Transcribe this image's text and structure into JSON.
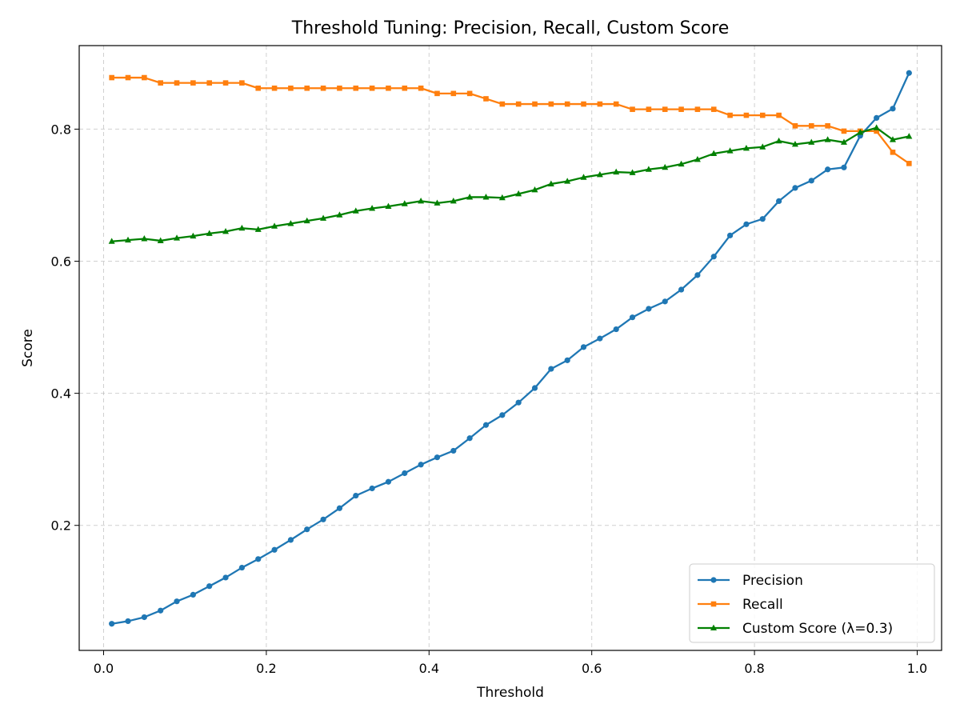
{
  "chart_data": {
    "type": "line",
    "title": "Threshold Tuning: Precision, Recall, Custom Score",
    "xlabel": "Threshold",
    "ylabel": "Score",
    "xlim": [
      -0.03,
      1.03
    ],
    "ylim": [
      0.0107,
      0.9265
    ],
    "xticks": [
      0.0,
      0.2,
      0.4,
      0.6,
      0.8,
      1.0
    ],
    "xtick_labels": [
      "0.0",
      "0.2",
      "0.4",
      "0.6",
      "0.8",
      "1.0"
    ],
    "yticks": [
      0.2,
      0.4,
      0.6,
      0.8
    ],
    "ytick_labels": [
      "0.2",
      "0.4",
      "0.6",
      "0.8"
    ],
    "grid": true,
    "legend_position": "bottom-right",
    "x": [
      0.01,
      0.03,
      0.05,
      0.07,
      0.09,
      0.11,
      0.13,
      0.15,
      0.17,
      0.19,
      0.21,
      0.23,
      0.25,
      0.27,
      0.29,
      0.31,
      0.33,
      0.35,
      0.37,
      0.39,
      0.41,
      0.43,
      0.45,
      0.47,
      0.49,
      0.51,
      0.53,
      0.55,
      0.57,
      0.59,
      0.61,
      0.63,
      0.65,
      0.67,
      0.69,
      0.71,
      0.73,
      0.75,
      0.77,
      0.79,
      0.81,
      0.83,
      0.85,
      0.87,
      0.89,
      0.91,
      0.93,
      0.95,
      0.97,
      0.99
    ],
    "series": [
      {
        "name": "Precision",
        "color": "#1f77b4",
        "marker": "circle",
        "values": [
          0.051,
          0.055,
          0.061,
          0.071,
          0.085,
          0.095,
          0.108,
          0.121,
          0.136,
          0.149,
          0.163,
          0.178,
          0.194,
          0.209,
          0.226,
          0.245,
          0.256,
          0.266,
          0.279,
          0.292,
          0.303,
          0.313,
          0.332,
          0.352,
          0.367,
          0.386,
          0.408,
          0.437,
          0.45,
          0.47,
          0.483,
          0.497,
          0.515,
          0.528,
          0.539,
          0.557,
          0.579,
          0.607,
          0.639,
          0.656,
          0.664,
          0.691,
          0.711,
          0.722,
          0.739,
          0.742,
          0.79,
          0.817,
          0.831,
          0.885
        ]
      },
      {
        "name": "Recall",
        "color": "#ff7f0e",
        "marker": "square",
        "values": [
          0.878,
          0.878,
          0.878,
          0.87,
          0.87,
          0.87,
          0.87,
          0.87,
          0.87,
          0.862,
          0.862,
          0.862,
          0.862,
          0.862,
          0.862,
          0.862,
          0.862,
          0.862,
          0.862,
          0.862,
          0.854,
          0.854,
          0.854,
          0.846,
          0.838,
          0.838,
          0.838,
          0.838,
          0.838,
          0.838,
          0.838,
          0.838,
          0.83,
          0.83,
          0.83,
          0.83,
          0.83,
          0.83,
          0.821,
          0.821,
          0.821,
          0.821,
          0.805,
          0.805,
          0.805,
          0.797,
          0.797,
          0.797,
          0.765,
          0.748
        ]
      },
      {
        "name": "Custom Score (λ=0.3)",
        "color": "#008000",
        "marker": "triangle",
        "values": [
          0.63,
          0.632,
          0.634,
          0.631,
          0.635,
          0.638,
          0.642,
          0.645,
          0.65,
          0.648,
          0.653,
          0.657,
          0.661,
          0.665,
          0.67,
          0.676,
          0.68,
          0.683,
          0.687,
          0.691,
          0.688,
          0.691,
          0.697,
          0.697,
          0.696,
          0.702,
          0.708,
          0.717,
          0.721,
          0.727,
          0.731,
          0.735,
          0.734,
          0.739,
          0.742,
          0.747,
          0.754,
          0.763,
          0.767,
          0.771,
          0.773,
          0.782,
          0.777,
          0.78,
          0.784,
          0.78,
          0.795,
          0.802,
          0.784,
          0.789
        ]
      }
    ]
  }
}
